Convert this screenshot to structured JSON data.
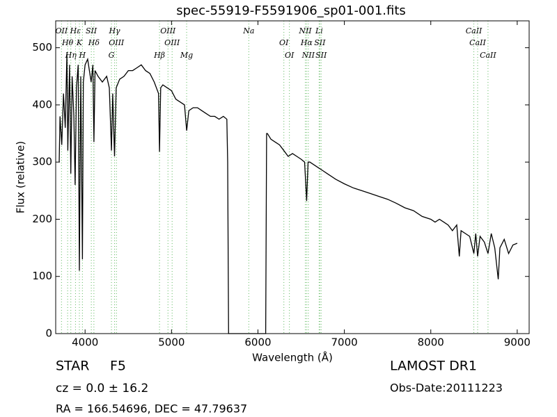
{
  "chart_data": {
    "type": "line",
    "title": "spec-55919-F5591906_sp01-001.fits",
    "x_label": "Wavelength (Å)",
    "y_label": "Flux (relative)",
    "xlim": [
      3660,
      9138
    ],
    "ylim": [
      0,
      547
    ],
    "xticks": [
      4000,
      5000,
      6000,
      7000,
      8000,
      9000
    ],
    "yticks": [
      0,
      100,
      200,
      300,
      400,
      500
    ],
    "color": "#000000",
    "line_color": "#5cb85c",
    "x": [
      3700,
      3710,
      3730,
      3750,
      3770,
      3790,
      3800,
      3820,
      3835,
      3850,
      3870,
      3885,
      3900,
      3920,
      3934,
      3950,
      3969,
      3980,
      4000,
      4030,
      4050,
      4070,
      4090,
      4102,
      4115,
      4150,
      4200,
      4250,
      4280,
      4305,
      4320,
      4341,
      4360,
      4400,
      4450,
      4500,
      4550,
      4600,
      4650,
      4700,
      4750,
      4800,
      4850,
      4861,
      4875,
      4900,
      4950,
      5000,
      5050,
      5100,
      5150,
      5175,
      5200,
      5250,
      5300,
      5350,
      5400,
      5450,
      5500,
      5550,
      5600,
      5640,
      5650,
      5660,
      6090,
      6100,
      6110,
      6150,
      6200,
      6250,
      6300,
      6350,
      6400,
      6450,
      6500,
      6540,
      6563,
      6580,
      6600,
      6650,
      6700,
      6750,
      6800,
      6900,
      7000,
      7100,
      7200,
      7300,
      7400,
      7500,
      7600,
      7700,
      7800,
      7900,
      8000,
      8050,
      8100,
      8150,
      8200,
      8250,
      8300,
      8330,
      8350,
      8400,
      8450,
      8498,
      8520,
      8542,
      8570,
      8620,
      8662,
      8700,
      8740,
      8780,
      8800,
      8850,
      8900,
      8950,
      9000
    ],
    "values": [
      300,
      380,
      330,
      420,
      360,
      490,
      320,
      470,
      280,
      450,
      380,
      260,
      430,
      470,
      110,
      450,
      130,
      440,
      470,
      480,
      460,
      440,
      470,
      335,
      460,
      450,
      440,
      450,
      430,
      320,
      420,
      310,
      430,
      445,
      450,
      460,
      460,
      465,
      470,
      460,
      455,
      440,
      420,
      318,
      430,
      435,
      430,
      425,
      410,
      405,
      400,
      355,
      390,
      395,
      395,
      390,
      385,
      380,
      380,
      375,
      380,
      375,
      300,
      0,
      0,
      350,
      350,
      340,
      335,
      330,
      320,
      310,
      315,
      310,
      305,
      300,
      232,
      300,
      300,
      295,
      290,
      285,
      280,
      270,
      262,
      255,
      250,
      245,
      240,
      235,
      228,
      220,
      215,
      205,
      200,
      195,
      200,
      195,
      190,
      180,
      190,
      135,
      180,
      175,
      170,
      140,
      175,
      135,
      170,
      160,
      140,
      175,
      150,
      95,
      150,
      165,
      140,
      155,
      158
    ],
    "lines": [
      {
        "label": "OII",
        "x": 3727
      },
      {
        "label": "Hθ",
        "x": 3798
      },
      {
        "label": "Hη",
        "x": 3835
      },
      {
        "label": "Hε",
        "x": 3889
      },
      {
        "label": "K",
        "x": 3934
      },
      {
        "label": "H",
        "x": 3969
      },
      {
        "label": "SII",
        "x": 4072
      },
      {
        "label": "Hδ",
        "x": 4102
      },
      {
        "label": "G",
        "x": 4305
      },
      {
        "label": "Hγ",
        "x": 4341
      },
      {
        "label": "OIII",
        "x": 4363
      },
      {
        "label": "Hβ",
        "x": 4861
      },
      {
        "label": "OIII",
        "x": 4959
      },
      {
        "label": "OIII",
        "x": 5007
      },
      {
        "label": "Mg",
        "x": 5175
      },
      {
        "label": "Na",
        "x": 5894
      },
      {
        "label": "OI",
        "x": 6300
      },
      {
        "label": "OI",
        "x": 6364
      },
      {
        "label": "NII",
        "x": 6548
      },
      {
        "label": "Hα",
        "x": 6563
      },
      {
        "label": "NII",
        "x": 6583
      },
      {
        "label": "Li",
        "x": 6708
      },
      {
        "label": "SII",
        "x": 6716
      },
      {
        "label": "SII",
        "x": 6731
      },
      {
        "label": "CaII",
        "x": 8498
      },
      {
        "label": "CaII",
        "x": 8542
      },
      {
        "label": "CaII",
        "x": 8662
      }
    ],
    "object_class": "STAR",
    "subclass": "F5",
    "redshift": "cz = 0.0 ± 16.2",
    "coordinates": "RA = 166.54696, DEC = 47.79637",
    "survey": "LAMOST DR1",
    "obs_date": "Obs-Date:20111223"
  }
}
